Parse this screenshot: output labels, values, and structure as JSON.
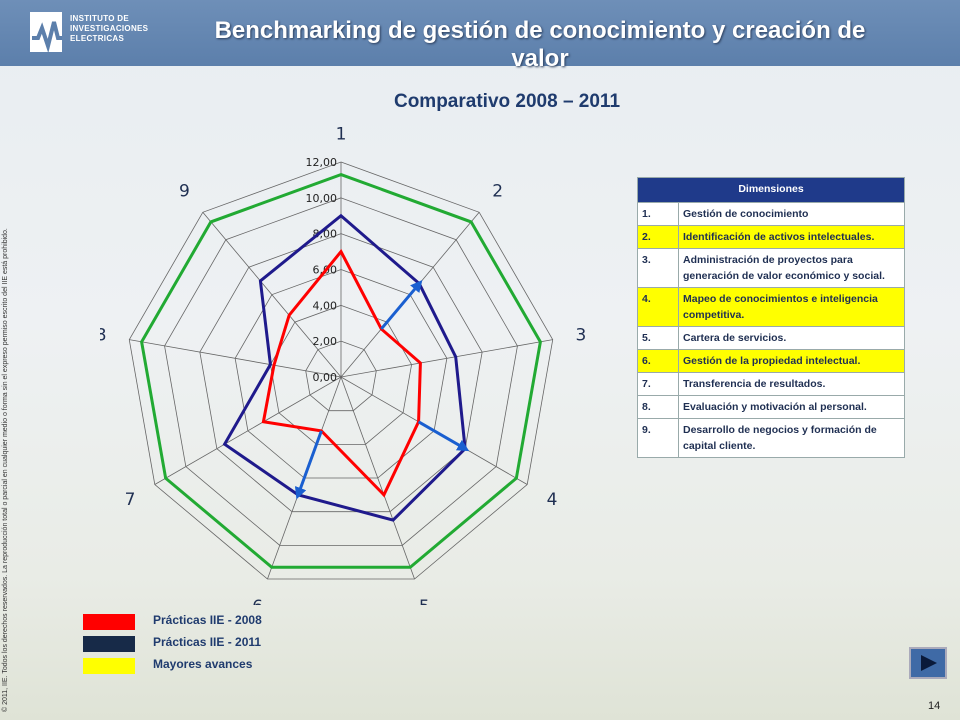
{
  "header": {
    "title": "Benchmarking de gestión de conocimiento y creación de valor",
    "logo_lines": [
      "INSTITUTO DE",
      "INVESTIGACIONES",
      "ELECTRICAS"
    ]
  },
  "subtitle": "Comparativo 2008 – 2011",
  "copyright": "© 2011, IIE. Todos los derechos reservados. La reproducción total o parcial en cualquier medio o forma sin el expreso permiso escrito del IIE está prohibido.",
  "page_number": "14",
  "colors": {
    "series_2008": "#ff0000",
    "series_2011": "#1f1a8c",
    "benchmark": "#22aa33",
    "arrow": "#1a5fd0",
    "highlight": "#ffff00"
  },
  "dimensions_table": {
    "header": "Dimensiones",
    "rows": [
      {
        "num": "1.",
        "text": "Gestión de conocimiento",
        "highlight": false
      },
      {
        "num": "2.",
        "text": "Identificación de activos intelectuales.",
        "highlight": true
      },
      {
        "num": "3.",
        "text": "Administración de proyectos para generación de valor económico y social.",
        "highlight": false
      },
      {
        "num": "4.",
        "text": "Mapeo de conocimientos e inteligencia competitiva.",
        "highlight": true
      },
      {
        "num": "5.",
        "text": "Cartera de servicios.",
        "highlight": false
      },
      {
        "num": "6.",
        "text": "Gestión de la propiedad intelectual.",
        "highlight": true
      },
      {
        "num": "7.",
        "text": "Transferencia de resultados.",
        "highlight": false
      },
      {
        "num": "8.",
        "text": "Evaluación y motivación al personal.",
        "highlight": false
      },
      {
        "num": "9.",
        "text": "Desarrollo de negocios y formación de capital cliente.",
        "highlight": false
      }
    ]
  },
  "legend": [
    {
      "label": "Prácticas IIE - 2008",
      "color": "#ff0000"
    },
    {
      "label": "Prácticas IIE - 2011",
      "color": "#172a48"
    },
    {
      "label": "Mayores avances",
      "color": "#ffff00"
    }
  ],
  "chart_data": {
    "type": "radar",
    "categories": [
      "1",
      "2",
      "3",
      "4",
      "5",
      "6",
      "7",
      "8",
      "9"
    ],
    "tick_labels": [
      "0,00",
      "2,00",
      "4,00",
      "6,00",
      "8,00",
      "10,00",
      "12,00"
    ],
    "rmax": 12,
    "series": [
      {
        "name": "Prácticas IIE - 2008",
        "values": [
          7.0,
          3.5,
          4.5,
          5.0,
          7.0,
          3.2,
          5.0,
          3.8,
          4.5
        ]
      },
      {
        "name": "Prácticas IIE - 2011",
        "values": [
          9.0,
          6.8,
          6.5,
          8.0,
          8.5,
          7.0,
          7.5,
          4.0,
          7.0
        ]
      },
      {
        "values": [
          11.3,
          11.3,
          11.3,
          11.3,
          11.3,
          11.3,
          11.3,
          11.3,
          11.3
        ]
      }
    ],
    "arrows": [
      {
        "category": "2",
        "from": 3.5,
        "to": 6.8
      },
      {
        "category": "4",
        "from": 5.0,
        "to": 8.0
      },
      {
        "category": "6",
        "from": 3.2,
        "to": 7.0
      }
    ]
  }
}
